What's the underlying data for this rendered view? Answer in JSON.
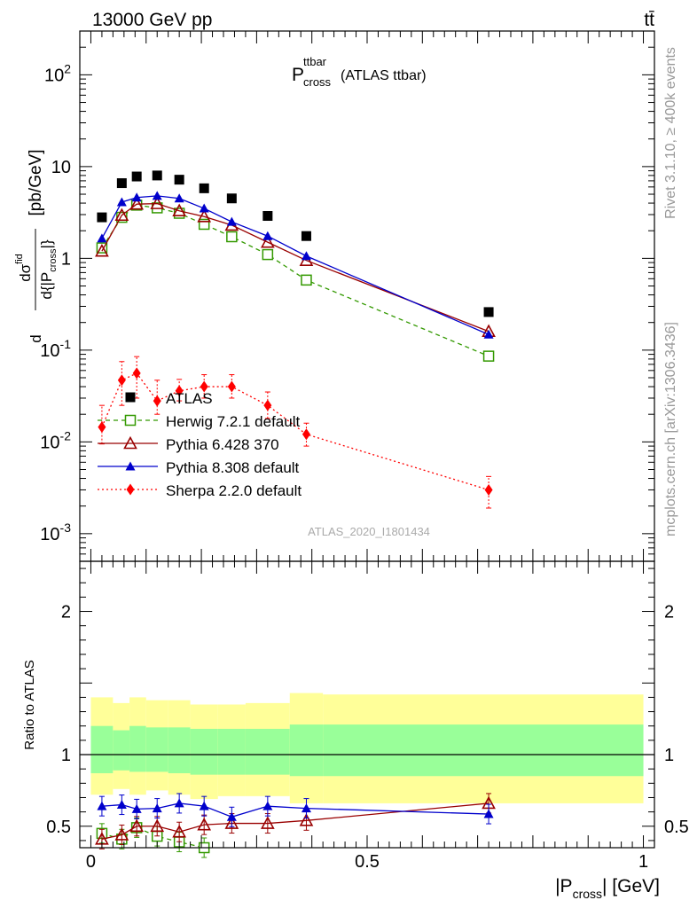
{
  "header": {
    "left": "13000 GeV pp",
    "right": "tt̄"
  },
  "side_labels": {
    "rivet": "Rivet 3.1.10, ≥ 400k events",
    "mcplots": "mcplots.cern.ch [arXiv:1306.3436]"
  },
  "analysis_id": "ATLAS_2020_I1801434",
  "chart_data": [
    {
      "type": "scatter",
      "title": "P_cross^ttbar (ATLAS ttbar)",
      "title_parts": {
        "main": "P",
        "sup": "ttbar",
        "sub": "cross",
        "rest": "(ATLAS ttbar)"
      },
      "ylabel": "dσ^{fid}/d{|P_cross|} [pb/GeV]",
      "yscale": "log",
      "ylim": [
        0.0005,
        300
      ],
      "xlim": [
        -0.02,
        1.02
      ],
      "y_tick_labels": [
        "10^-3",
        "10^-2",
        "10^-1",
        "1",
        "10",
        "10^2"
      ],
      "legend": {
        "position": "middle-left",
        "entries": [
          "ATLAS",
          "Herwig 7.2.1 default",
          "Pythia 6.428 370",
          "Pythia 8.308 default",
          "Sherpa 2.2.0 default"
        ]
      },
      "x": [
        0.02,
        0.056,
        0.083,
        0.12,
        0.16,
        0.205,
        0.255,
        0.32,
        0.39,
        0.72
      ],
      "series": [
        {
          "name": "ATLAS",
          "color": "#000000",
          "marker": "square-filled",
          "values": [
            2.8,
            6.6,
            7.8,
            8.0,
            7.2,
            5.8,
            4.5,
            2.9,
            1.75,
            0.26
          ]
        },
        {
          "name": "Herwig 7.2.1 default",
          "color": "#339900",
          "marker": "square-open",
          "line": "dashed",
          "values": [
            1.3,
            2.8,
            3.8,
            3.55,
            3.1,
            2.35,
            1.72,
            1.1,
            0.58,
            0.086
          ]
        },
        {
          "name": "Pythia 6.428 370",
          "color": "#990000",
          "marker": "triangle-open",
          "line": "solid",
          "values": [
            1.2,
            2.95,
            3.9,
            3.95,
            3.3,
            2.85,
            2.3,
            1.5,
            0.95,
            0.16
          ]
        },
        {
          "name": "Pythia 8.308 default",
          "color": "#0000cc",
          "marker": "triangle-filled",
          "line": "solid",
          "values": [
            1.65,
            4.1,
            4.6,
            4.8,
            4.5,
            3.5,
            2.5,
            1.75,
            1.06,
            0.148
          ]
        },
        {
          "name": "Sherpa 2.2.0 default",
          "color": "#ff0000",
          "marker": "diamond-filled",
          "line": "dotted",
          "values": [
            0.0145,
            0.047,
            0.056,
            0.028,
            0.036,
            0.04,
            0.04,
            0.025,
            0.0121,
            0.003
          ],
          "err_lo": [
            0.0095,
            0.025,
            0.03,
            0.02,
            0.028,
            0.03,
            0.03,
            0.018,
            0.009,
            0.0019
          ],
          "err_hi": [
            0.025,
            0.075,
            0.085,
            0.047,
            0.048,
            0.054,
            0.054,
            0.035,
            0.016,
            0.0042
          ]
        }
      ]
    },
    {
      "type": "scatter",
      "ylabel": "Ratio to ATLAS",
      "xlabel": "|P_cross| [GeV]",
      "xlabel_parts": {
        "pre": "|P",
        "sub": "cross",
        "post": "| [GeV]"
      },
      "ylim": [
        0.35,
        2.35
      ],
      "xlim": [
        -0.02,
        1.02
      ],
      "x_tick_labels": [
        "0",
        "0.5",
        "1"
      ],
      "y_tick_labels": [
        "0.5",
        "1",
        "2"
      ],
      "reference_line": 1,
      "bin_edges": [
        0.0,
        0.04,
        0.07,
        0.1,
        0.14,
        0.18,
        0.23,
        0.28,
        0.36,
        0.42,
        1.0
      ],
      "band_outer": {
        "color": "#ffff99",
        "lo": [
          0.72,
          0.76,
          0.72,
          0.75,
          0.72,
          0.69,
          0.71,
          0.71,
          0.66,
          0.66
        ],
        "hi": [
          1.4,
          1.36,
          1.4,
          1.38,
          1.38,
          1.35,
          1.35,
          1.36,
          1.43,
          1.42
        ]
      },
      "band_inner": {
        "color": "#99ff99",
        "lo": [
          0.87,
          0.89,
          0.88,
          0.88,
          0.87,
          0.86,
          0.86,
          0.86,
          0.85,
          0.85
        ],
        "hi": [
          1.2,
          1.17,
          1.2,
          1.19,
          1.19,
          1.18,
          1.18,
          1.18,
          1.21,
          1.21
        ]
      },
      "x": [
        0.02,
        0.056,
        0.083,
        0.12,
        0.16,
        0.205,
        0.255,
        0.32,
        0.39,
        0.72
      ],
      "series": [
        {
          "name": "Herwig 7.2.1 default",
          "color": "#339900",
          "marker": "square-open",
          "line": "dashed",
          "values": [
            0.45,
            0.41,
            0.49,
            0.43,
            0.39,
            0.35,
            null,
            null,
            null,
            null
          ]
        },
        {
          "name": "Pythia 6.428 370",
          "color": "#990000",
          "marker": "triangle-open",
          "line": "solid",
          "values": [
            0.41,
            0.44,
            0.5,
            0.5,
            0.46,
            0.51,
            0.52,
            0.52,
            0.54,
            0.66
          ]
        },
        {
          "name": "Pythia 8.308 default",
          "color": "#0000cc",
          "marker": "triangle-filled",
          "line": "solid",
          "values": [
            0.64,
            0.65,
            0.62,
            0.625,
            0.66,
            0.64,
            0.565,
            0.64,
            0.625,
            0.585
          ]
        }
      ]
    }
  ]
}
